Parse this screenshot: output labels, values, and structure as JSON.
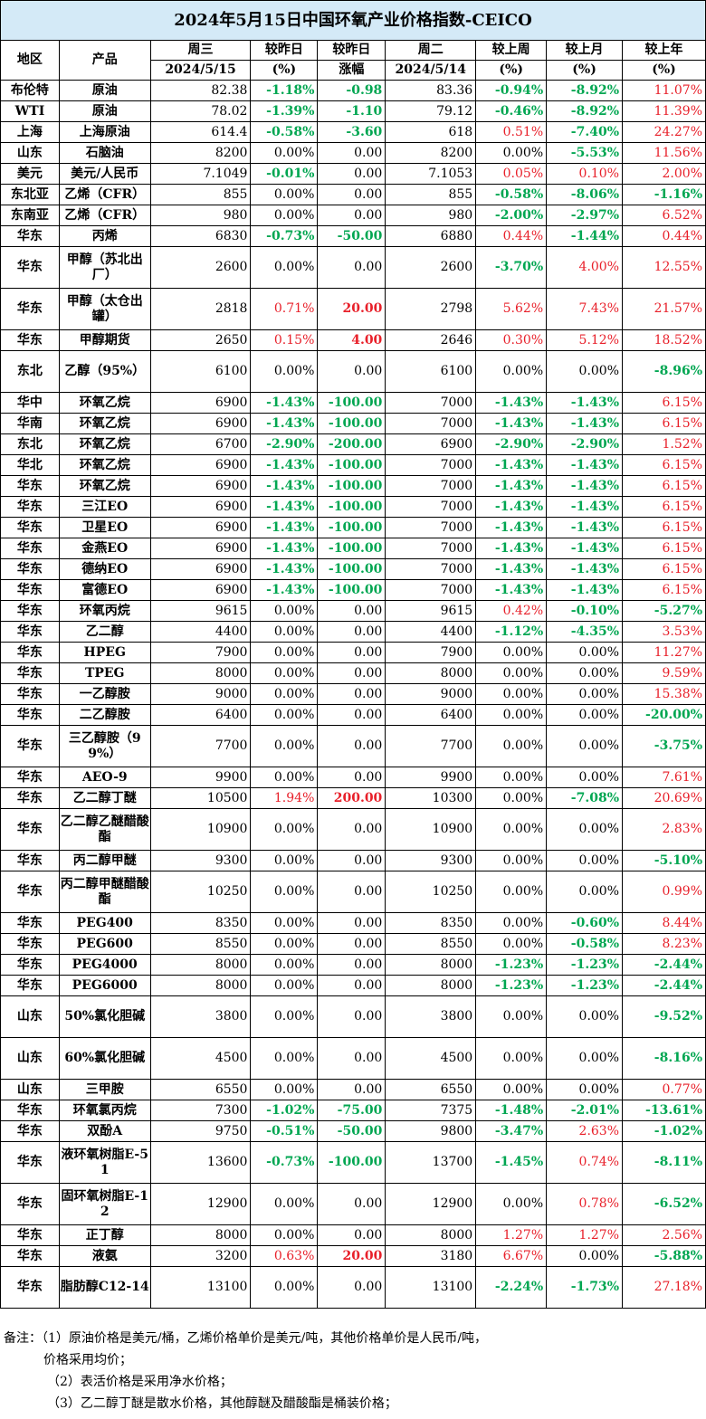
{
  "title": "2024年5月15日中国环氧产业价格指数-CEICO",
  "header": {
    "region": "地区",
    "product": "产品",
    "wed": "周三",
    "wed_date": "2024/5/15",
    "vs_yesterday": "较昨日",
    "vs_yesterday_unit": "(%)",
    "vs_yesterday2": "较昨日",
    "vs_yesterday2_unit": "涨幅",
    "tue": "周二",
    "tue_date": "2024/5/14",
    "vs_week": "较上周",
    "vs_week_unit": "(%)",
    "vs_month": "较上月",
    "vs_month_unit": "(%)",
    "vs_year": "较上年",
    "vs_year_unit": "(%)"
  },
  "colors": {
    "title_bg": "#d4eaf7",
    "up": "#e8202a",
    "down": "#00a651"
  },
  "rows": [
    {
      "region": "布伦特",
      "product": "原油",
      "wed": "82.38",
      "dd": "-1.18%",
      "dc": "-0.98",
      "tue": "83.36",
      "w": "-0.94%",
      "m": "-8.92%",
      "y": "11.07%"
    },
    {
      "region": "WTI",
      "product": "原油",
      "wed": "78.02",
      "dd": "-1.39%",
      "dc": "-1.10",
      "tue": "79.12",
      "w": "-0.46%",
      "m": "-8.92%",
      "y": "11.39%"
    },
    {
      "region": "上海",
      "product": "上海原油",
      "wed": "614.4",
      "dd": "-0.58%",
      "dc": "-3.60",
      "tue": "618",
      "w": "0.51%",
      "m": "-7.40%",
      "y": "24.27%"
    },
    {
      "region": "山东",
      "product": "石脑油",
      "wed": "8200",
      "dd": "0.00%",
      "dc": "0.00",
      "tue": "8200",
      "w": "0.00%",
      "m": "-5.53%",
      "y": "11.56%"
    },
    {
      "region": "美元",
      "product": "美元/人民币",
      "wed": "7.1049",
      "dd": "-0.01%",
      "dc": "0.00",
      "tue": "7.1053",
      "w": "0.05%",
      "m": "0.10%",
      "y": "2.00%"
    },
    {
      "region": "东北亚",
      "product": "乙烯（CFR）",
      "wed": "855",
      "dd": "0.00%",
      "dc": "0.00",
      "tue": "855",
      "w": "-0.58%",
      "m": "-8.06%",
      "y": "-1.16%"
    },
    {
      "region": "东南亚",
      "product": "乙烯（CFR）",
      "wed": "980",
      "dd": "0.00%",
      "dc": "0.00",
      "tue": "980",
      "w": "-2.00%",
      "m": "-2.97%",
      "y": "6.52%"
    },
    {
      "region": "华东",
      "product": "丙烯",
      "wed": "6830",
      "dd": "-0.73%",
      "dc": "-50.00",
      "tue": "6880",
      "w": "0.44%",
      "m": "-1.44%",
      "y": "0.44%"
    },
    {
      "region": "华东",
      "product": "甲醇（苏北出厂）",
      "wed": "2600",
      "dd": "0.00%",
      "dc": "0.00",
      "tue": "2600",
      "w": "-3.70%",
      "m": "4.00%",
      "y": "12.55%"
    },
    {
      "region": "华东",
      "product": "甲醇（太仓出罐）",
      "wed": "2818",
      "dd": "0.71%",
      "dc": "20.00",
      "tue": "2798",
      "w": "5.62%",
      "m": "7.43%",
      "y": "21.57%"
    },
    {
      "region": "华东",
      "product": "甲醇期货",
      "wed": "2650",
      "dd": "0.15%",
      "dc": "4.00",
      "tue": "2646",
      "w": "0.30%",
      "m": "5.12%",
      "y": "18.52%"
    },
    {
      "region": "东北",
      "product": "乙醇（95%）",
      "wed": "6100",
      "dd": "0.00%",
      "dc": "0.00",
      "tue": "6100",
      "w": "0.00%",
      "m": "0.00%",
      "y": "-8.96%"
    },
    {
      "region": "华中",
      "product": "环氧乙烷",
      "wed": "6900",
      "dd": "-1.43%",
      "dc": "-100.00",
      "tue": "7000",
      "w": "-1.43%",
      "m": "-1.43%",
      "y": "6.15%"
    },
    {
      "region": "华南",
      "product": "环氧乙烷",
      "wed": "6900",
      "dd": "-1.43%",
      "dc": "-100.00",
      "tue": "7000",
      "w": "-1.43%",
      "m": "-1.43%",
      "y": "6.15%"
    },
    {
      "region": "东北",
      "product": "环氧乙烷",
      "wed": "6700",
      "dd": "-2.90%",
      "dc": "-200.00",
      "tue": "6900",
      "w": "-2.90%",
      "m": "-2.90%",
      "y": "1.52%"
    },
    {
      "region": "华北",
      "product": "环氧乙烷",
      "wed": "6900",
      "dd": "-1.43%",
      "dc": "-100.00",
      "tue": "7000",
      "w": "-1.43%",
      "m": "-1.43%",
      "y": "6.15%"
    },
    {
      "region": "华东",
      "product": "环氧乙烷",
      "wed": "6900",
      "dd": "-1.43%",
      "dc": "-100.00",
      "tue": "7000",
      "w": "-1.43%",
      "m": "-1.43%",
      "y": "6.15%"
    },
    {
      "region": "华东",
      "product": "三江EO",
      "wed": "6900",
      "dd": "-1.43%",
      "dc": "-100.00",
      "tue": "7000",
      "w": "-1.43%",
      "m": "-1.43%",
      "y": "6.15%"
    },
    {
      "region": "华东",
      "product": "卫星EO",
      "wed": "6900",
      "dd": "-1.43%",
      "dc": "-100.00",
      "tue": "7000",
      "w": "-1.43%",
      "m": "-1.43%",
      "y": "6.15%"
    },
    {
      "region": "华东",
      "product": "金燕EO",
      "wed": "6900",
      "dd": "-1.43%",
      "dc": "-100.00",
      "tue": "7000",
      "w": "-1.43%",
      "m": "-1.43%",
      "y": "6.15%"
    },
    {
      "region": "华东",
      "product": "德纳EO",
      "wed": "6900",
      "dd": "-1.43%",
      "dc": "-100.00",
      "tue": "7000",
      "w": "-1.43%",
      "m": "-1.43%",
      "y": "6.15%"
    },
    {
      "region": "华东",
      "product": "富德EO",
      "wed": "6900",
      "dd": "-1.43%",
      "dc": "-100.00",
      "tue": "7000",
      "w": "-1.43%",
      "m": "-1.43%",
      "y": "6.15%"
    },
    {
      "region": "华东",
      "product": "环氧丙烷",
      "wed": "9615",
      "dd": "0.00%",
      "dc": "0.00",
      "tue": "9615",
      "w": "0.42%",
      "m": "-0.10%",
      "y": "-5.27%"
    },
    {
      "region": "华东",
      "product": "乙二醇",
      "wed": "4400",
      "dd": "0.00%",
      "dc": "0.00",
      "tue": "4400",
      "w": "-1.12%",
      "m": "-4.35%",
      "y": "3.53%"
    },
    {
      "region": "华东",
      "product": "HPEG",
      "wed": "7900",
      "dd": "0.00%",
      "dc": "0.00",
      "tue": "7900",
      "w": "0.00%",
      "m": "0.00%",
      "y": "11.27%"
    },
    {
      "region": "华东",
      "product": "TPEG",
      "wed": "8000",
      "dd": "0.00%",
      "dc": "0.00",
      "tue": "8000",
      "w": "0.00%",
      "m": "0.00%",
      "y": "9.59%"
    },
    {
      "region": "华东",
      "product": "一乙醇胺",
      "wed": "9000",
      "dd": "0.00%",
      "dc": "0.00",
      "tue": "9000",
      "w": "0.00%",
      "m": "0.00%",
      "y": "15.38%"
    },
    {
      "region": "华东",
      "product": "二乙醇胺",
      "wed": "6400",
      "dd": "0.00%",
      "dc": "0.00",
      "tue": "6400",
      "w": "0.00%",
      "m": "0.00%",
      "y": "-20.00%"
    },
    {
      "region": "华东",
      "product": "三乙醇胺（99%）",
      "wed": "7700",
      "dd": "0.00%",
      "dc": "0.00",
      "tue": "7700",
      "w": "0.00%",
      "m": "0.00%",
      "y": "-3.75%"
    },
    {
      "region": "华东",
      "product": "AEO-9",
      "wed": "9900",
      "dd": "0.00%",
      "dc": "0.00",
      "tue": "9900",
      "w": "0.00%",
      "m": "0.00%",
      "y": "7.61%"
    },
    {
      "region": "华东",
      "product": "乙二醇丁醚",
      "wed": "10500",
      "dd": "1.94%",
      "dc": "200.00",
      "tue": "10300",
      "w": "0.00%",
      "m": "-7.08%",
      "y": "20.69%"
    },
    {
      "region": "华东",
      "product": "乙二醇乙醚醋酸酯",
      "wed": "10900",
      "dd": "0.00%",
      "dc": "0.00",
      "tue": "10900",
      "w": "0.00%",
      "m": "0.00%",
      "y": "2.83%"
    },
    {
      "region": "华东",
      "product": "丙二醇甲醚",
      "wed": "9300",
      "dd": "0.00%",
      "dc": "0.00",
      "tue": "9300",
      "w": "0.00%",
      "m": "0.00%",
      "y": "-5.10%"
    },
    {
      "region": "华东",
      "product": "丙二醇甲醚醋酸酯",
      "wed": "10250",
      "dd": "0.00%",
      "dc": "0.00",
      "tue": "10250",
      "w": "0.00%",
      "m": "0.00%",
      "y": "0.99%"
    },
    {
      "region": "华东",
      "product": "PEG400",
      "wed": "8350",
      "dd": "0.00%",
      "dc": "0.00",
      "tue": "8350",
      "w": "0.00%",
      "m": "-0.60%",
      "y": "8.44%"
    },
    {
      "region": "华东",
      "product": "PEG600",
      "wed": "8550",
      "dd": "0.00%",
      "dc": "0.00",
      "tue": "8550",
      "w": "0.00%",
      "m": "-0.58%",
      "y": "8.23%"
    },
    {
      "region": "华东",
      "product": "PEG4000",
      "wed": "8000",
      "dd": "0.00%",
      "dc": "0.00",
      "tue": "8000",
      "w": "-1.23%",
      "m": "-1.23%",
      "y": "-2.44%"
    },
    {
      "region": "华东",
      "product": "PEG6000",
      "wed": "8000",
      "dd": "0.00%",
      "dc": "0.00",
      "tue": "8000",
      "w": "-1.23%",
      "m": "-1.23%",
      "y": "-2.44%"
    },
    {
      "region": "山东",
      "product": "50%氯化胆碱",
      "wed": "3800",
      "dd": "0.00%",
      "dc": "0.00",
      "tue": "3800",
      "w": "0.00%",
      "m": "0.00%",
      "y": "-9.52%"
    },
    {
      "region": "山东",
      "product": "60%氯化胆碱",
      "wed": "4500",
      "dd": "0.00%",
      "dc": "0.00",
      "tue": "4500",
      "w": "0.00%",
      "m": "0.00%",
      "y": "-8.16%"
    },
    {
      "region": "山东",
      "product": "三甲胺",
      "wed": "6550",
      "dd": "0.00%",
      "dc": "0.00",
      "tue": "6550",
      "w": "0.00%",
      "m": "0.00%",
      "y": "0.77%"
    },
    {
      "region": "华东",
      "product": "环氧氯丙烷",
      "wed": "7300",
      "dd": "-1.02%",
      "dc": "-75.00",
      "tue": "7375",
      "w": "-1.48%",
      "m": "-2.01%",
      "y": "-13.61%"
    },
    {
      "region": "华东",
      "product": "双酚A",
      "wed": "9750",
      "dd": "-0.51%",
      "dc": "-50.00",
      "tue": "9800",
      "w": "-3.47%",
      "m": "2.63%",
      "y": "-1.02%"
    },
    {
      "region": "华东",
      "product": "液环氧树脂E-51",
      "wed": "13600",
      "dd": "-0.73%",
      "dc": "-100.00",
      "tue": "13700",
      "w": "-1.45%",
      "m": "0.74%",
      "y": "-8.11%"
    },
    {
      "region": "华东",
      "product": "固环氧树脂E-12",
      "wed": "12900",
      "dd": "0.00%",
      "dc": "0.00",
      "tue": "12900",
      "w": "0.00%",
      "m": "0.78%",
      "y": "-6.52%"
    },
    {
      "region": "华东",
      "product": "正丁醇",
      "wed": "8000",
      "dd": "0.00%",
      "dc": "0.00",
      "tue": "8000",
      "w": "1.27%",
      "m": "1.27%",
      "y": "2.56%"
    },
    {
      "region": "华东",
      "product": "液氨",
      "wed": "3200",
      "dd": "0.63%",
      "dc": "20.00",
      "tue": "3180",
      "w": "6.67%",
      "m": "0.00%",
      "y": "-5.88%"
    },
    {
      "region": "华东",
      "product": "脂肪醇C12-14",
      "wed": "13100",
      "dd": "0.00%",
      "dc": "0.00",
      "tue": "13100",
      "w": "-2.24%",
      "m": "-1.73%",
      "y": "27.18%"
    }
  ],
  "notes": {
    "line1": "备注：（1）原油价格是美元/桶，乙烯价格单价是美元/吨，其他价格单价是人民币/吨，",
    "line2": "价格采用均价；",
    "line3": "（2）表活价格是采用净水价格；",
    "line4": "（3）乙二醇丁醚是散水价格，其他醇醚及醋酸酯是桶装价格；"
  }
}
